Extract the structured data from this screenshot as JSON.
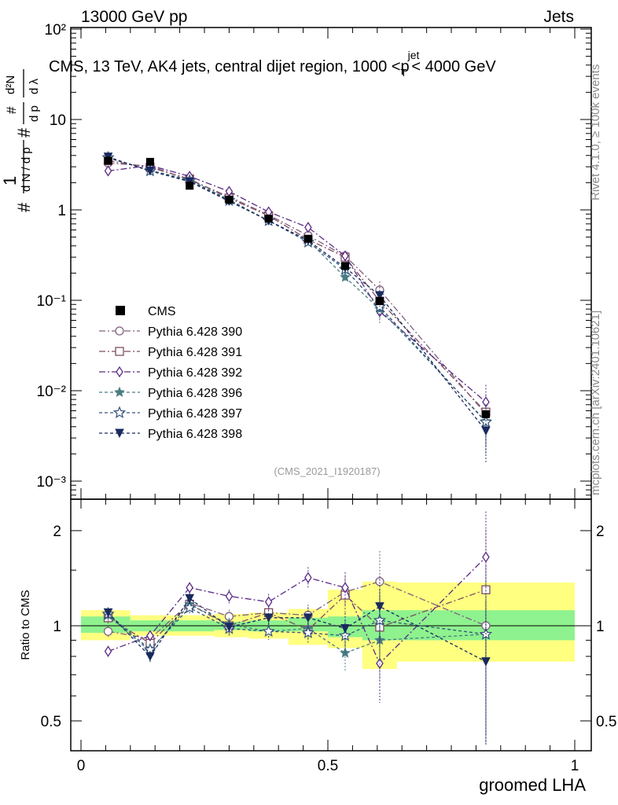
{
  "header": {
    "left": "13000 GeV pp",
    "right": "Jets"
  },
  "chart_data": [
    {
      "panel": "main",
      "type": "line",
      "title": "CMS, 13 TeV, AK4 jets, central dijet region, 1000 <p_T^{jet}< 4000 GeV",
      "ylabel": "1/dN/dp_T  d²N/(dp_T dλ)",
      "yscale": "log",
      "ylim": [
        0.0007,
        120
      ],
      "xlim": [
        -0.02,
        1.0
      ],
      "y_tick_labels": [
        "10⁻³",
        "10⁻²",
        "10⁻¹",
        "1",
        "10",
        "10²"
      ],
      "x": [
        0.055,
        0.14,
        0.22,
        0.3,
        0.38,
        0.46,
        0.535,
        0.605,
        0.82
      ],
      "reference": {
        "name": "CMS",
        "values": [
          3.5,
          3.4,
          1.85,
          1.3,
          0.8,
          0.48,
          0.24,
          0.098,
          0.0055
        ],
        "band_edges": [
          0.0,
          0.1,
          0.18,
          0.27,
          0.34,
          0.42,
          0.5,
          0.57,
          0.64,
          1.0
        ]
      },
      "series": [
        {
          "name": "Pythia 6.428 390",
          "color": "#80607f",
          "marker": "circle-open",
          "values": [
            3.3,
            3.05,
            2.15,
            1.4,
            0.88,
            0.52,
            0.31,
            0.13,
            0.0055
          ]
        },
        {
          "name": "Pythia 6.428 391",
          "color": "#7d4e5f",
          "marker": "square-open",
          "values": [
            3.5,
            2.95,
            2.2,
            1.35,
            0.86,
            0.47,
            0.3,
            0.098,
            0.0058
          ]
        },
        {
          "name": "Pythia 6.428 392",
          "color": "#5b2a85",
          "marker": "diamond-open",
          "values": [
            2.7,
            3.1,
            2.35,
            1.6,
            0.95,
            0.64,
            0.31,
            0.075,
            0.0075
          ]
        },
        {
          "name": "Pythia 6.428 396",
          "color": "#4a7c83",
          "marker": "star-filled",
          "values": [
            3.75,
            2.75,
            2.15,
            1.3,
            0.76,
            0.46,
            0.18,
            0.08,
            0.0046
          ]
        },
        {
          "name": "Pythia 6.428 397",
          "color": "#34527a",
          "marker": "star-open",
          "values": [
            3.8,
            2.7,
            2.1,
            1.27,
            0.76,
            0.44,
            0.22,
            0.085,
            0.0045
          ]
        },
        {
          "name": "Pythia 6.428 398",
          "color": "#1a2a5e",
          "marker": "triangle-down-filled",
          "values": [
            3.85,
            2.7,
            2.05,
            1.25,
            0.76,
            0.46,
            0.23,
            0.113,
            0.0036
          ]
        }
      ],
      "legend_position": "middle-left",
      "watermark": "(CMS_2021_I1920187)"
    },
    {
      "panel": "ratio",
      "type": "line",
      "xlabel": "groomed LHA",
      "ylabel": "Ratio to CMS",
      "ylim": [
        0.4,
        2.35
      ],
      "xlim": [
        -0.02,
        1.0
      ],
      "x_ticks": [
        0,
        0.5,
        1
      ],
      "x_tick_labels": [
        "0",
        "0.5",
        "1"
      ],
      "y_ticks": [
        0.5,
        1,
        2
      ],
      "y_tick_labels": [
        "0.5",
        "1",
        "2"
      ],
      "stat_band": [
        [
          0.95,
          1.07
        ],
        [
          0.96,
          1.04
        ],
        [
          0.96,
          1.04
        ],
        [
          0.97,
          1.03
        ],
        [
          0.96,
          1.04
        ],
        [
          0.96,
          1.06
        ],
        [
          0.92,
          1.07
        ],
        [
          0.9,
          1.12
        ],
        [
          0.9,
          1.12
        ]
      ],
      "sys_band": [
        [
          0.9,
          1.12
        ],
        [
          0.93,
          1.08
        ],
        [
          0.93,
          1.08
        ],
        [
          0.92,
          1.09
        ],
        [
          0.91,
          1.1
        ],
        [
          0.87,
          1.13
        ],
        [
          0.85,
          1.3
        ],
        [
          0.73,
          1.38
        ],
        [
          0.77,
          1.37
        ]
      ],
      "series": [
        {
          "name": "Pythia 6.428 390",
          "values": [
            0.96,
            0.91,
            1.18,
            1.07,
            1.1,
            1.08,
            1.28,
            1.38,
            1.0
          ]
        },
        {
          "name": "Pythia 6.428 391",
          "values": [
            1.06,
            0.88,
            1.17,
            1.0,
            1.1,
            0.97,
            1.25,
            0.99,
            1.3
          ]
        },
        {
          "name": "Pythia 6.428 392",
          "values": [
            0.83,
            0.93,
            1.32,
            1.24,
            1.19,
            1.42,
            1.32,
            0.76,
            1.65
          ]
        },
        {
          "name": "Pythia 6.428 396",
          "values": [
            1.08,
            0.83,
            1.17,
            1.01,
            0.96,
            0.98,
            0.82,
            0.9,
            0.94
          ]
        },
        {
          "name": "Pythia 6.428 397",
          "values": [
            1.09,
            0.84,
            1.14,
            0.98,
            0.96,
            0.95,
            0.93,
            1.04,
            0.94
          ]
        },
        {
          "name": "Pythia 6.428 398",
          "values": [
            1.1,
            0.8,
            1.22,
            0.99,
            1.06,
            1.06,
            0.98,
            1.15,
            0.77
          ]
        }
      ]
    }
  ],
  "side_labels": {
    "rivet": "Rivet 4.1.0, ≥ 100k events",
    "mcplots": "mcplots.cern.ch [arXiv:2401.10621]"
  }
}
